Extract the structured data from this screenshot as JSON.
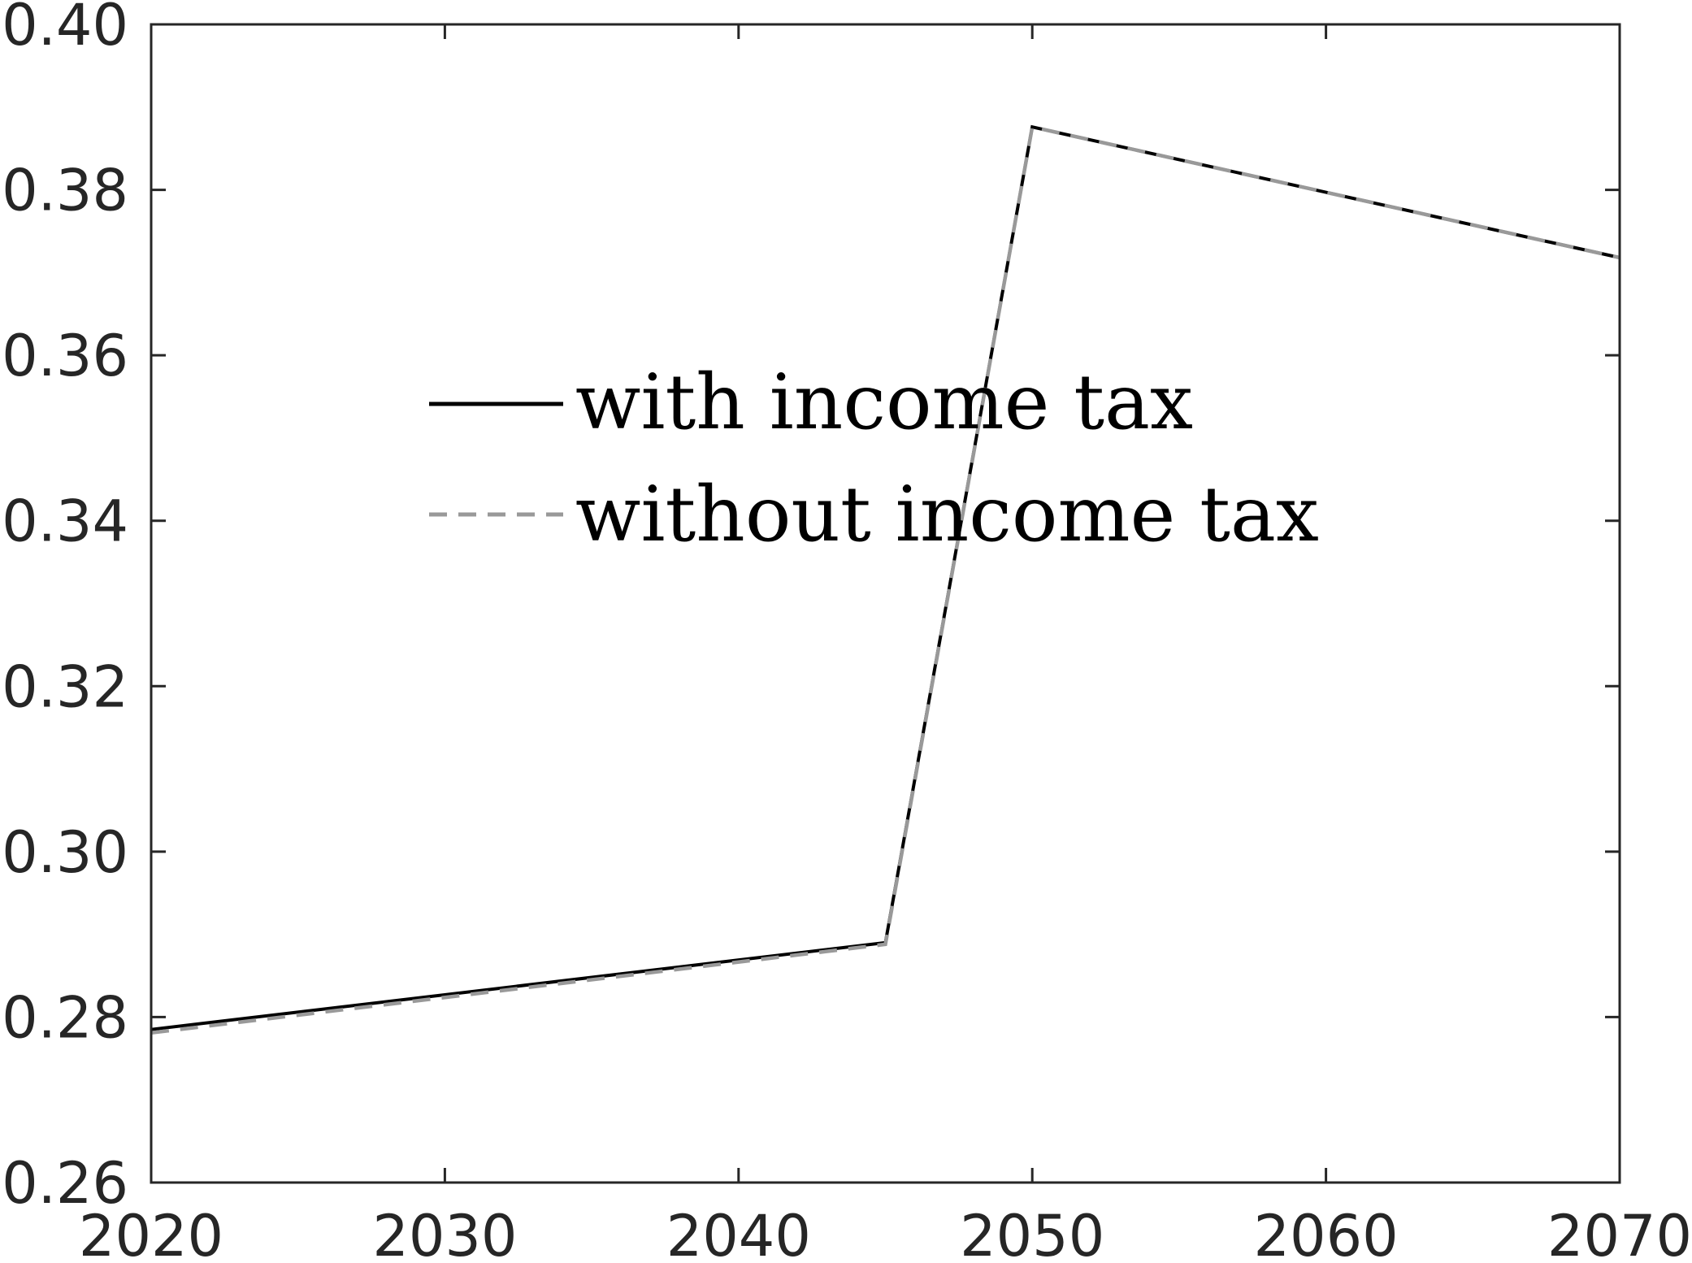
{
  "chart_data": {
    "type": "line",
    "title": "",
    "xlabel": "",
    "ylabel": "",
    "xlim": [
      2020,
      2070
    ],
    "ylim": [
      0.26,
      0.4
    ],
    "x_ticks": [
      2020,
      2030,
      2040,
      2050,
      2060,
      2070
    ],
    "y_ticks": [
      0.26,
      0.28,
      0.3,
      0.32,
      0.34,
      0.36,
      0.38,
      0.4
    ],
    "x_tick_labels": [
      "2020",
      "2030",
      "2040",
      "2050",
      "2060",
      "2070"
    ],
    "y_tick_labels": [
      "0.26",
      "0.28",
      "0.30",
      "0.32",
      "0.34",
      "0.36",
      "0.38",
      "0.40"
    ],
    "grid": false,
    "legend_position": "upper-left-center",
    "series": [
      {
        "name": "with income tax",
        "color": "#000000",
        "style": "solid",
        "x": [
          2020,
          2045,
          2050,
          2070
        ],
        "y": [
          0.2785,
          0.289,
          0.3876,
          0.3718
        ]
      },
      {
        "name": "without income tax",
        "color": "#999999",
        "style": "dashed",
        "x": [
          2020,
          2045,
          2050,
          2070
        ],
        "y": [
          0.2781,
          0.2888,
          0.3876,
          0.3718
        ]
      }
    ]
  }
}
